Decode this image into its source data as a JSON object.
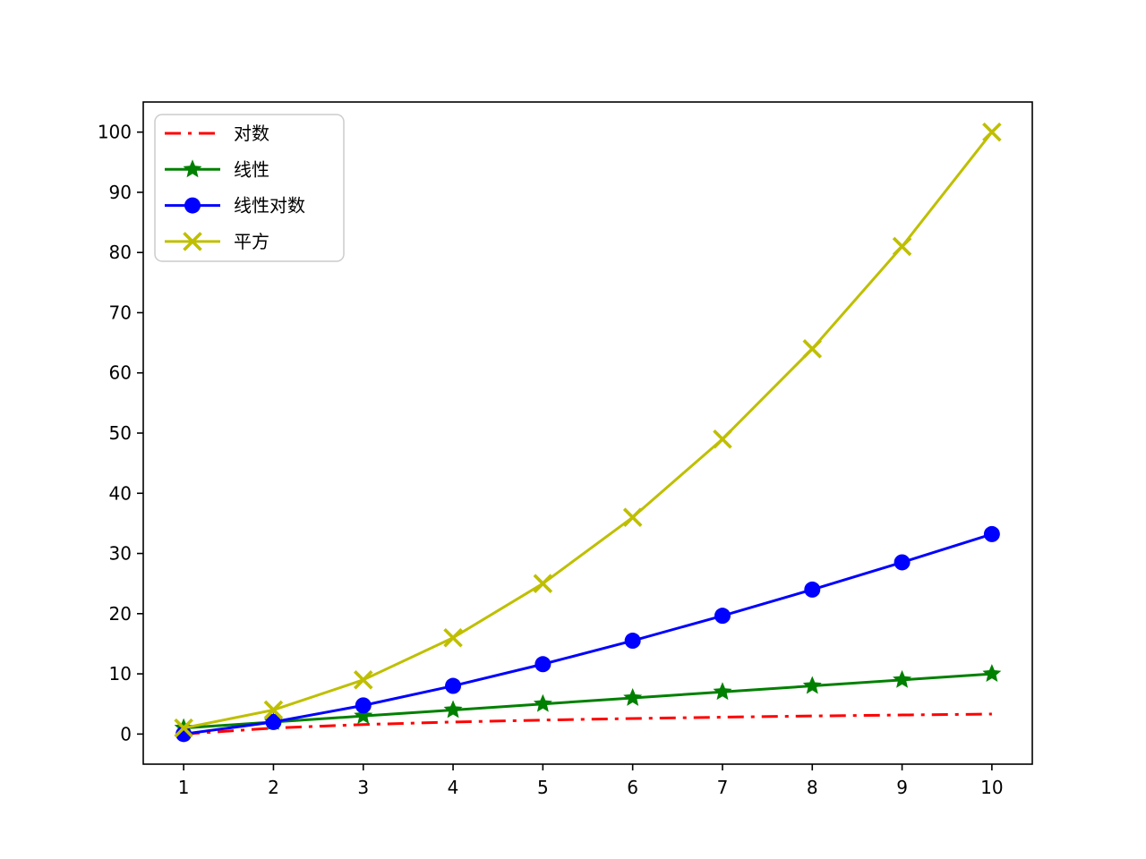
{
  "figure": {
    "background": "#ffffff",
    "axis_color": "#000000",
    "tick_label_color": "#000000"
  },
  "chart_data": {
    "type": "line",
    "title": "",
    "xlabel": "",
    "ylabel": "",
    "x": [
      1,
      2,
      3,
      4,
      5,
      6,
      7,
      8,
      9,
      10
    ],
    "x_ticks": [
      "1",
      "2",
      "3",
      "4",
      "5",
      "6",
      "7",
      "8",
      "9",
      "10"
    ],
    "y_ticks": [
      "0",
      "10",
      "20",
      "30",
      "40",
      "50",
      "60",
      "70",
      "80",
      "90",
      "100"
    ],
    "xlim": [
      0.55,
      10.45
    ],
    "ylim": [
      -5,
      105
    ],
    "grid": false,
    "legend": {
      "position": "upper-left",
      "border_color": "#cccccc",
      "background": "#ffffff",
      "entries": [
        "对数",
        "线性",
        "线性对数",
        "平方"
      ]
    },
    "series": [
      {
        "name": "对数",
        "color": "#ff0000",
        "linestyle": "dashdot",
        "marker": "none",
        "values": [
          0,
          1,
          1.585,
          2,
          2.322,
          2.585,
          2.807,
          3,
          3.17,
          3.322
        ]
      },
      {
        "name": "线性",
        "color": "#008000",
        "linestyle": "solid",
        "marker": "star",
        "values": [
          1,
          2,
          3,
          4,
          5,
          6,
          7,
          8,
          9,
          10
        ]
      },
      {
        "name": "线性对数",
        "color": "#0000ff",
        "linestyle": "solid",
        "marker": "circle",
        "values": [
          0,
          2,
          4.755,
          8,
          11.61,
          15.51,
          19.651,
          24,
          28.529,
          33.219
        ]
      },
      {
        "name": "平方",
        "color": "#bfbf00",
        "linestyle": "solid",
        "marker": "x",
        "values": [
          1,
          4,
          9,
          16,
          25,
          36,
          49,
          64,
          81,
          100
        ]
      }
    ]
  }
}
